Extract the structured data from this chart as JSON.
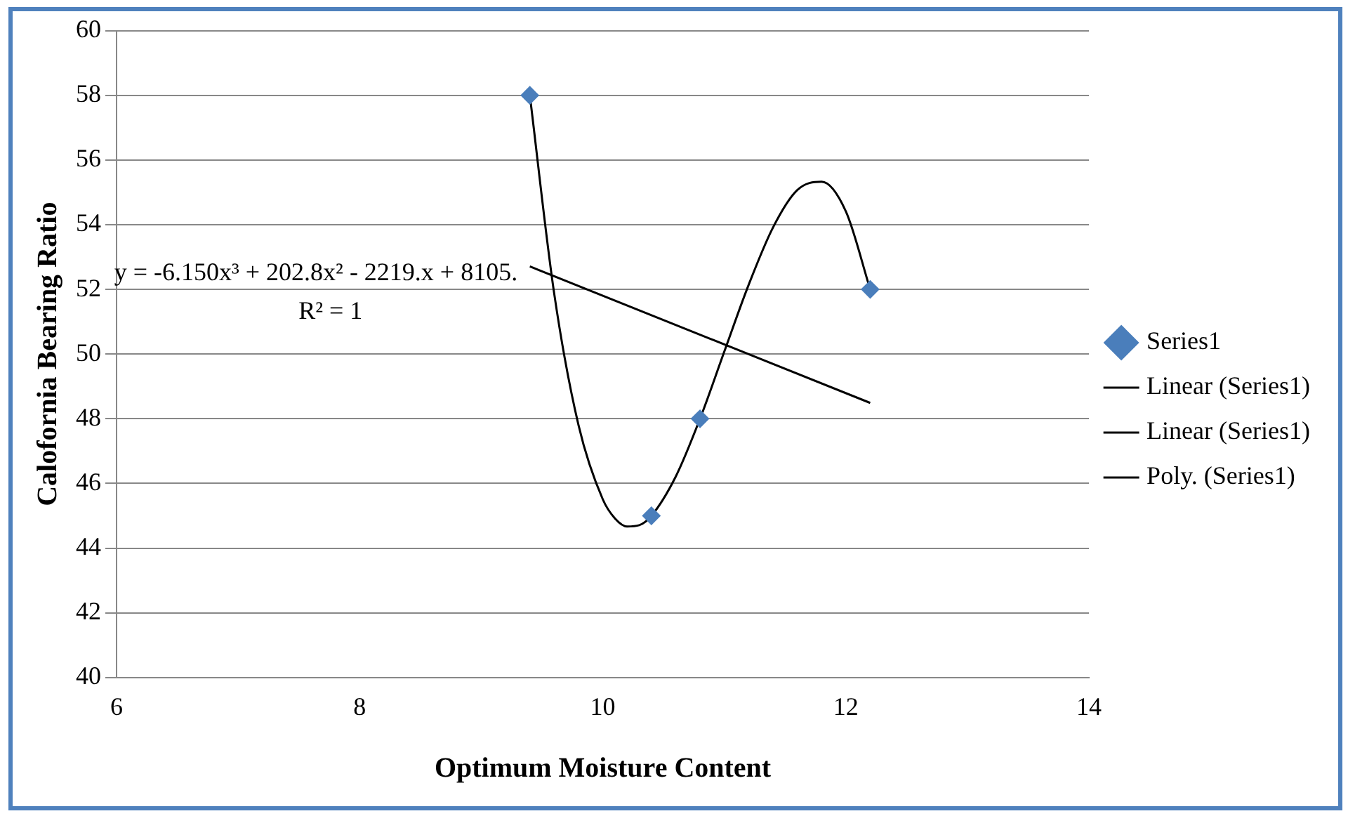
{
  "chart_data": {
    "type": "scatter",
    "xlabel": "Optimum Moisture Content",
    "ylabel": "Calofornia Bearing Ratio",
    "xlim": [
      6,
      14
    ],
    "xticks": [
      6,
      8,
      10,
      12,
      14
    ],
    "ylim": [
      40,
      60
    ],
    "yticks": [
      40,
      42,
      44,
      46,
      48,
      50,
      52,
      54,
      56,
      58,
      60
    ],
    "grid": "y",
    "legend": "right",
    "annotations": [
      "y = -6.150x³ + 202.8x² - 2219.x + 8105.",
      "R² = 1"
    ],
    "series": [
      {
        "name": "Series1",
        "type": "scatter",
        "color": "#4a7ebb",
        "marker": "diamond",
        "x": [
          9.4,
          10.4,
          10.8,
          12.2
        ],
        "values": [
          58,
          45,
          48,
          52
        ]
      },
      {
        "name": "Linear (Series1)",
        "type": "line",
        "color": "#000000",
        "marker": "none",
        "line_style": "solid",
        "x": [
          9.4,
          12.2
        ],
        "values": [
          52.71,
          48.49
        ]
      },
      {
        "name": "Linear (Series1)",
        "type": "line",
        "color": "#000000",
        "marker": "none",
        "line_style": "solid"
      },
      {
        "name": "Poly. (Series1)",
        "type": "line",
        "color": "#000000",
        "marker": "none",
        "line_style": "solid",
        "x": [
          9.4,
          9.6,
          9.8,
          10.0,
          10.1,
          10.2,
          10.3,
          10.4,
          10.6,
          10.8,
          11.0,
          11.2,
          11.4,
          11.6,
          11.8,
          12.0,
          12.2
        ],
        "values": [
          58,
          51.88,
          47.81,
          45.51,
          44.92,
          44.67,
          44.71,
          45,
          46.21,
          48,
          50.08,
          52.14,
          53.91,
          55.07,
          55.33,
          54.41,
          52
        ]
      }
    ]
  }
}
